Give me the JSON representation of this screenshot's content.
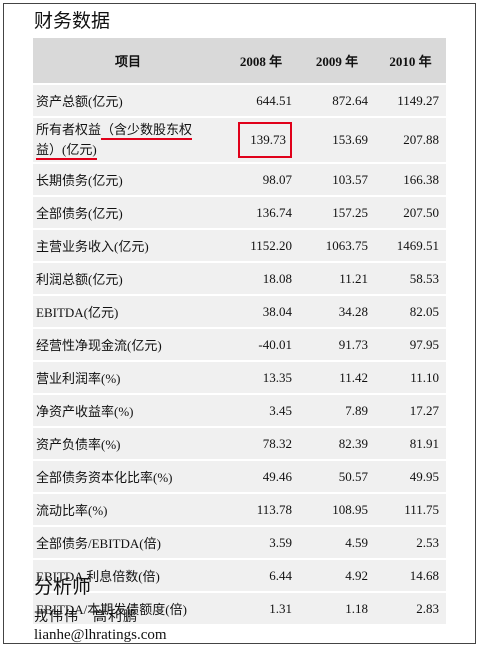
{
  "section_title": "财务数据",
  "table": {
    "headers": [
      "项目",
      "2008 年",
      "2009 年",
      "2010 年"
    ],
    "rows": [
      {
        "label": "资产总额(亿元)",
        "values": [
          "644.51",
          "872.64",
          "1149.27"
        ]
      },
      {
        "label_part1": "所有者权益",
        "label_part2": "（含少数股东权",
        "label_part3": "益）",
        "label_part4": "(亿元)",
        "values": [
          "139.73",
          "153.69",
          "207.88"
        ]
      },
      {
        "label": "长期债务(亿元)",
        "values": [
          "98.07",
          "103.57",
          "166.38"
        ]
      },
      {
        "label": "全部债务(亿元)",
        "values": [
          "136.74",
          "157.25",
          "207.50"
        ]
      },
      {
        "label": "主营业务收入(亿元)",
        "values": [
          "1152.20",
          "1063.75",
          "1469.51"
        ]
      },
      {
        "label": "利润总额(亿元)",
        "values": [
          "18.08",
          "11.21",
          "58.53"
        ]
      },
      {
        "label": "EBITDA(亿元)",
        "values": [
          "38.04",
          "34.28",
          "82.05"
        ]
      },
      {
        "label": "经营性净现金流(亿元)",
        "values": [
          "-40.01",
          "91.73",
          "97.95"
        ]
      },
      {
        "label": "营业利润率(%)",
        "values": [
          "13.35",
          "11.42",
          "11.10"
        ]
      },
      {
        "label": "净资产收益率(%)",
        "values": [
          "3.45",
          "7.89",
          "17.27"
        ]
      },
      {
        "label": "资产负债率(%)",
        "values": [
          "78.32",
          "82.39",
          "81.91"
        ]
      },
      {
        "label": "全部债务资本化比率(%)",
        "values": [
          "49.46",
          "50.57",
          "49.95"
        ]
      },
      {
        "label": "流动比率(%)",
        "values": [
          "113.78",
          "108.95",
          "111.75"
        ]
      },
      {
        "label": "全部债务/EBITDA(倍)",
        "values": [
          "3.59",
          "4.59",
          "2.53"
        ]
      },
      {
        "label": "EBITDA 利息倍数(倍)",
        "values": [
          "6.44",
          "4.92",
          "14.68"
        ]
      },
      {
        "label": "EBITDA/本期发债额度(倍)",
        "values": [
          "1.31",
          "1.18",
          "2.83"
        ]
      }
    ]
  },
  "analyst": {
    "title": "分析师",
    "names": [
      "戎伟伟",
      "高利鹏"
    ],
    "email": "lianhe@lhratings.com"
  },
  "colors": {
    "annotation": "#e0001a",
    "header_bg": "#d9d9d9",
    "row_bg": "#f0f0f0"
  }
}
